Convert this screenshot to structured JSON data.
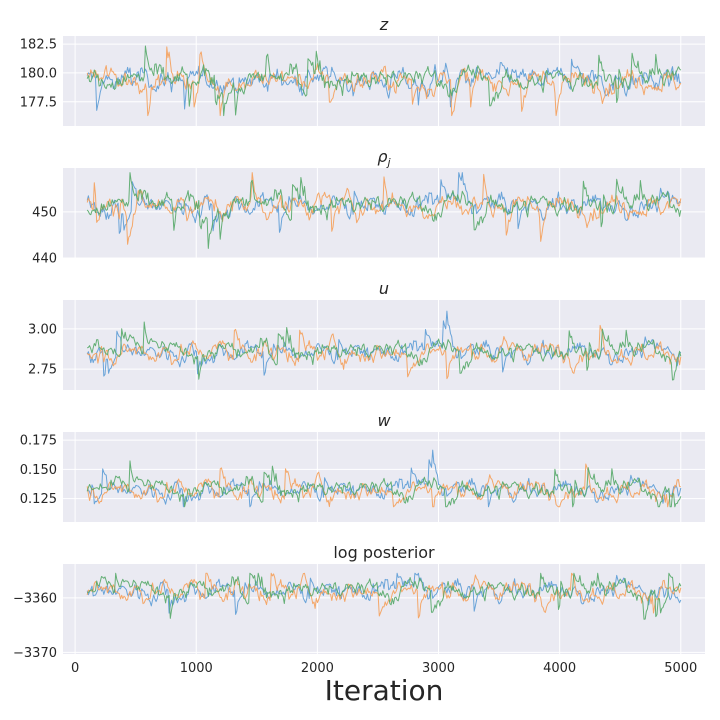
{
  "chart_data": {
    "type": "line",
    "xlabel": "Iteration",
    "x_range": [
      100,
      5000
    ],
    "xlim": [
      -100,
      5200
    ],
    "x_ticks": [
      0,
      1000,
      2000,
      3000,
      4000,
      5000
    ],
    "grid": true,
    "chains": [
      {
        "color": "#5b9bd5"
      },
      {
        "color": "#f5a05a"
      },
      {
        "color": "#55a868"
      }
    ],
    "panels": [
      {
        "title": "z",
        "title_style": "italic",
        "ylim": [
          175.4,
          183.2
        ],
        "ticks": [
          177.5,
          180.0,
          182.5
        ],
        "tick_labels": [
          "177.5",
          "180.0",
          "182.5"
        ],
        "center": 179.4,
        "spread": 1.0,
        "min": 176.3,
        "max": 182.9
      },
      {
        "title": "ρ",
        "title_sub": "j",
        "title_style": "italic",
        "ylim": [
          440,
          459.5
        ],
        "ticks": [
          440,
          450
        ],
        "tick_labels": [
          "440",
          "450"
        ],
        "center": 451.5,
        "spread": 2.4,
        "min": 442.0,
        "max": 458.5
      },
      {
        "title": "u",
        "title_style": "italic",
        "ylim": [
          2.62,
          3.18
        ],
        "ticks": [
          2.75,
          3.0
        ],
        "tick_labels": [
          "2.75",
          "3.00"
        ],
        "center": 2.86,
        "spread": 0.06,
        "min": 2.68,
        "max": 3.15
      },
      {
        "title": "w",
        "title_style": "italic",
        "ylim": [
          0.105,
          0.182
        ],
        "ticks": [
          0.125,
          0.15,
          0.175
        ],
        "tick_labels": [
          "0.125",
          "0.150",
          "0.175"
        ],
        "center": 0.133,
        "spread": 0.008,
        "min": 0.118,
        "max": 0.181
      },
      {
        "title": "log posterior",
        "title_style": "normal",
        "ylim": [
          -3370.3,
          -3353.8
        ],
        "ticks": [
          -3370,
          -3360
        ],
        "tick_labels": [
          "−3370",
          "−3360"
        ],
        "center": -3358.6,
        "spread": 1.8,
        "min": -3369.5,
        "max": -3355.5
      }
    ]
  }
}
